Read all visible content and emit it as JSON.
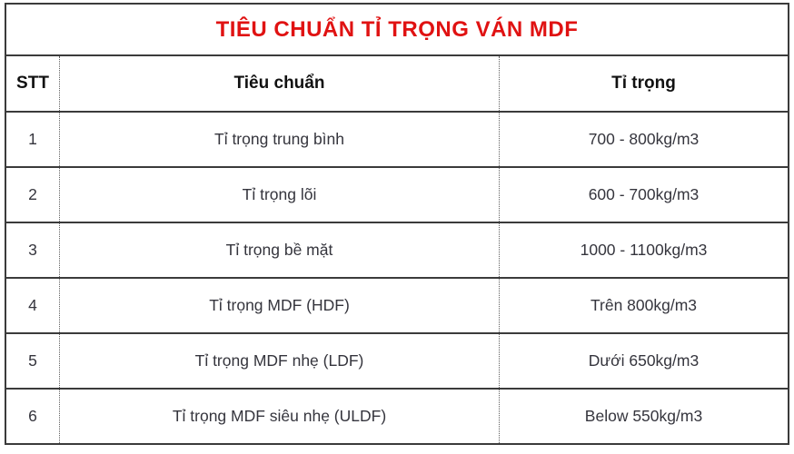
{
  "title": "TIÊU CHUẨN TỈ TRỌNG VÁN MDF",
  "colors": {
    "title_red": "#e01212",
    "border_dark": "#3b3b3b",
    "body_text": "#35353d"
  },
  "table": {
    "headers": [
      "STT",
      "Tiêu chuẩn",
      "Tỉ trọng"
    ],
    "rows": [
      {
        "stt": "1",
        "standard": "Tỉ trọng trung bình",
        "density": "700 - 800kg/m3"
      },
      {
        "stt": "2",
        "standard": "Tỉ trọng lõi",
        "density": "600 - 700kg/m3"
      },
      {
        "stt": "3",
        "standard": "Tỉ trọng bề mặt",
        "density": "1000 - 1100kg/m3"
      },
      {
        "stt": "4",
        "standard": "Tỉ trọng MDF (HDF)",
        "density": "Trên 800kg/m3"
      },
      {
        "stt": "5",
        "standard": "Tỉ trọng MDF nhẹ (LDF)",
        "density": "Dưới 650kg/m3"
      },
      {
        "stt": "6",
        "standard": "Tỉ trọng MDF siêu nhẹ (ULDF)",
        "density": "Below 550kg/m3"
      }
    ]
  }
}
